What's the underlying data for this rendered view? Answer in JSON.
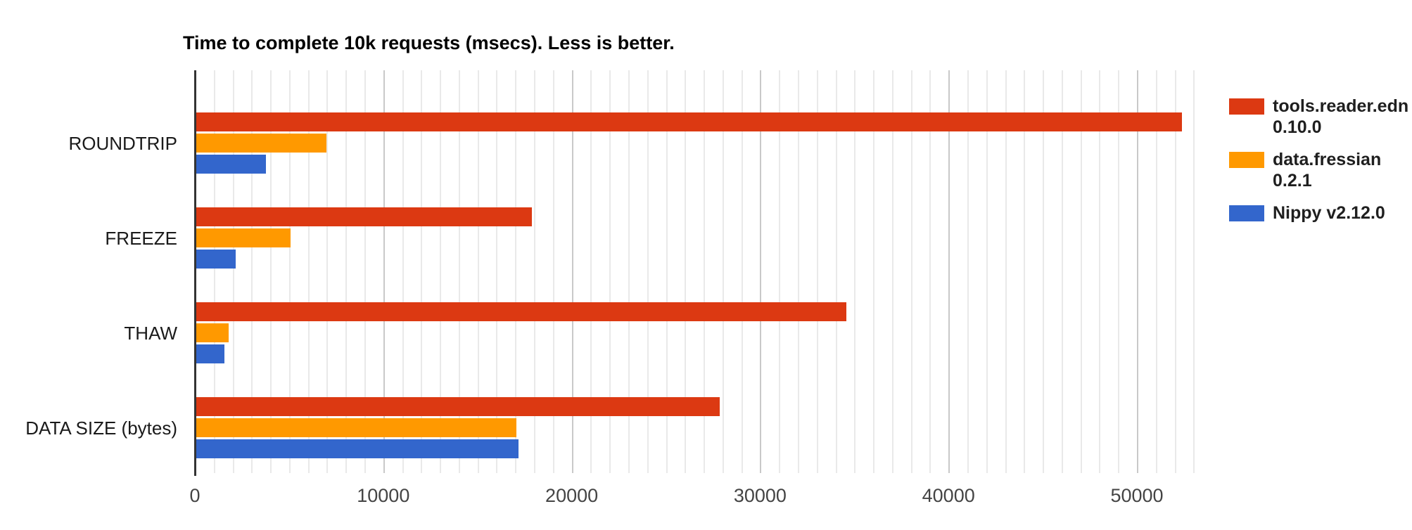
{
  "chart_data": {
    "type": "bar",
    "orientation": "horizontal",
    "title": "Time to complete 10k requests (msecs). Less is better.",
    "categories": [
      "ROUNDTRIP",
      "FREEZE",
      "THAW",
      "DATA SIZE (bytes)"
    ],
    "series": [
      {
        "name": "tools.reader.edn 0.10.0",
        "legend_lines": [
          "tools.reader.edn",
          "0.10.0"
        ],
        "color": "#dc3912",
        "values": [
          52300,
          17800,
          34500,
          27800
        ]
      },
      {
        "name": "data.fressian 0.2.1",
        "legend_lines": [
          "data.fressian",
          "0.2.1"
        ],
        "color": "#ff9900",
        "values": [
          6900,
          5000,
          1700,
          17000
        ]
      },
      {
        "name": "Nippy v2.12.0",
        "legend_lines": [
          "Nippy v2.12.0"
        ],
        "color": "#3366cc",
        "values": [
          3700,
          2100,
          1500,
          17100
        ]
      }
    ],
    "x_axis": {
      "min": 0,
      "max": 53400,
      "tick_values": [
        0,
        10000,
        20000,
        30000,
        40000,
        50000
      ],
      "tick_labels": [
        "0",
        "10000",
        "20000",
        "30000",
        "40000",
        "50000"
      ],
      "minor_gridline_step": 1000,
      "major_gridline_step": 10000
    },
    "legend_position": "right",
    "grid": true,
    "colors": {
      "background": "#ffffff",
      "title": "#000000",
      "minor_grid": "#e9e9e9",
      "major_grid": "#c9c9c9",
      "baseline": "#333333",
      "tick_label": "#444444",
      "category_label": "#1a1a1a"
    }
  }
}
